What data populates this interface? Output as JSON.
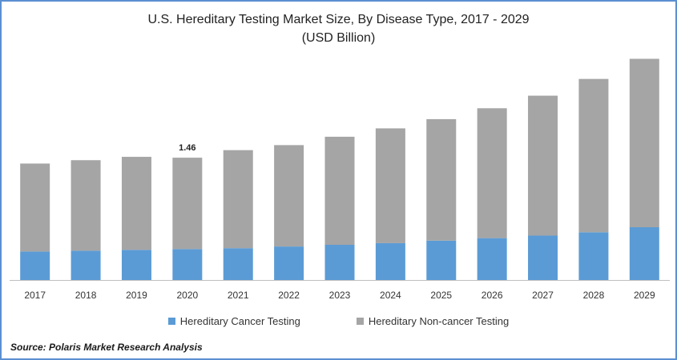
{
  "title": "U.S. Hereditary Testing Market Size, By Disease Type, 2017 - 2029",
  "subtitle": "(USD Billion)",
  "source": "Source: Polaris  Market Research Analysis",
  "colors": {
    "cancer": "#5b9bd5",
    "noncancer": "#a5a5a5",
    "frame": "#5b8fd1",
    "axis": "#bfbfbf"
  },
  "chart_data": {
    "type": "bar",
    "stacked": true,
    "categories": [
      "2017",
      "2018",
      "2019",
      "2020",
      "2021",
      "2022",
      "2023",
      "2024",
      "2025",
      "2026",
      "2027",
      "2028",
      "2029"
    ],
    "series": [
      {
        "name": "Hereditary Cancer Testing",
        "values": [
          0.34,
          0.35,
          0.36,
          0.37,
          0.38,
          0.4,
          0.42,
          0.44,
          0.47,
          0.5,
          0.53,
          0.57,
          0.63
        ]
      },
      {
        "name": "Hereditary Non-cancer Testing",
        "values": [
          1.05,
          1.08,
          1.11,
          1.09,
          1.17,
          1.21,
          1.29,
          1.37,
          1.45,
          1.55,
          1.67,
          1.83,
          2.01
        ]
      }
    ],
    "data_labels": [
      {
        "category": "2020",
        "text": "1.46"
      }
    ],
    "ylim": [
      0,
      2.75
    ],
    "grid": false,
    "legend": "bottom"
  }
}
